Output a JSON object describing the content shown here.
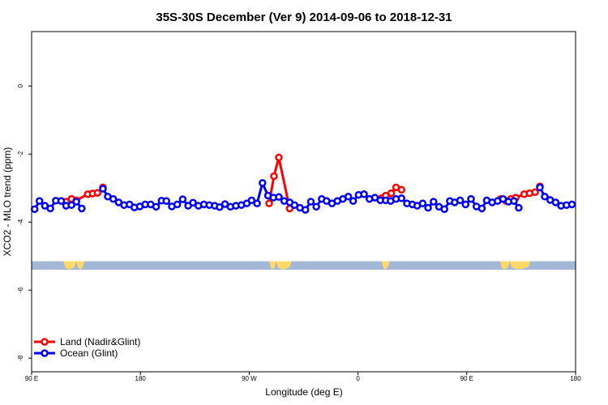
{
  "chart_data": {
    "type": "line",
    "title": "35S-30S December (Ver 9)   2014-09-06 to 2018-12-31",
    "xlabel": "Longitude (deg E)",
    "ylabel": "XCO2 - MLO trend (ppm)",
    "xlim": [
      90,
      450
    ],
    "ylim": [
      -8.4,
      1.6
    ],
    "x_ticks": [
      {
        "value": 90,
        "label": "90 E"
      },
      {
        "value": 162,
        "label": "180"
      },
      {
        "value": 234,
        "label": "90 W"
      },
      {
        "value": 306,
        "label": "0"
      },
      {
        "value": 378,
        "label": "90 E"
      },
      {
        "value": 450,
        "label": "180"
      }
    ],
    "y_ticks": [
      {
        "value": 0,
        "label": "0"
      },
      {
        "value": -2,
        "label": "-2"
      },
      {
        "value": -4,
        "label": "-4"
      },
      {
        "value": -6,
        "label": "-6"
      },
      {
        "value": -8,
        "label": "-8"
      }
    ],
    "grid": false,
    "legend_position": "bottom-left",
    "colors": {
      "land": "#ff0000",
      "ocean": "#0000ff",
      "land_mask": "#ffd966",
      "ocean_mask": "#a3b8d6"
    },
    "series": [
      {
        "name": "Land (Nadir&Glint)",
        "color": "#ff0000",
        "segments": [
          {
            "x": [
              112.8,
              116.4,
              119.6,
              127.2,
              130.4,
              133.6,
              137.2
            ],
            "y": [
              -3.4,
              -3.32,
              -3.36,
              -3.18,
              -3.16,
              -3.14,
              -2.98
            ]
          },
          {
            "x": [
              247.2,
              250.4,
              253.6,
              260.8
            ],
            "y": [
              -3.45,
              -2.65,
              -2.1,
              -3.6
            ]
          },
          {
            "x": [
              321.6,
              324.4,
              328.0,
              331.2,
              334.8
            ],
            "y": [
              -3.3,
              -3.22,
              -3.15,
              -2.98,
              -3.05
            ]
          },
          {
            "x": [
              400.4,
              404.0,
              407.2,
              410.4,
              416.0,
              419.6,
              423.2,
              426.4
            ],
            "y": [
              -3.32,
              -3.38,
              -3.32,
              -3.28,
              -3.18,
              -3.15,
              -3.12,
              -2.95
            ]
          }
        ]
      },
      {
        "name": "Ocean (Glint)",
        "color": "#0000ff",
        "segments": [
          {
            "x": [
              92.0,
              95.2,
              98.8,
              102.4,
              106.0,
              109.6,
              112.8,
              116.4,
              119.6,
              123.2
            ],
            "y": [
              -3.62,
              -3.38,
              -3.52,
              -3.6,
              -3.37,
              -3.38,
              -3.52,
              -3.5,
              -3.4,
              -3.6
            ]
          },
          {
            "x": [
              137.2,
              140.4,
              144.0,
              147.6,
              151.2,
              154.8,
              158.0,
              161.6,
              165.2,
              168.8,
              172.4,
              176.0,
              179.2,
              182.8,
              186.4,
              190.0,
              193.6,
              196.8,
              200.4,
              204.0,
              207.6,
              211.2,
              214.4,
              218.0,
              221.6,
              225.2,
              228.8,
              232.4,
              235.6,
              239.2,
              242.8,
              246.4,
              250.0,
              253.6,
              257.2,
              260.8,
              264.0,
              267.6,
              271.2,
              274.8,
              278.4,
              282.0,
              285.2,
              288.8,
              292.4,
              296.0,
              299.6,
              302.8,
              306.4,
              310.0,
              313.6,
              317.2,
              320.8,
              324.4,
              327.6,
              331.2,
              334.8,
              338.4,
              342.0,
              345.2,
              348.8,
              352.4,
              356.0,
              359.6,
              363.2,
              366.8,
              370.0,
              373.6,
              377.2,
              380.8,
              384.4,
              388.0,
              391.2,
              394.8,
              398.4,
              402.0,
              405.6,
              409.2,
              412.4
            ],
            "y": [
              -3.02,
              -3.25,
              -3.32,
              -3.42,
              -3.5,
              -3.48,
              -3.57,
              -3.54,
              -3.48,
              -3.48,
              -3.55,
              -3.37,
              -3.38,
              -3.54,
              -3.48,
              -3.33,
              -3.52,
              -3.43,
              -3.52,
              -3.48,
              -3.5,
              -3.52,
              -3.56,
              -3.47,
              -3.55,
              -3.52,
              -3.5,
              -3.45,
              -3.36,
              -3.45,
              -2.85,
              -3.22,
              -3.28,
              -3.26,
              -3.38,
              -3.42,
              -3.5,
              -3.58,
              -3.64,
              -3.4,
              -3.55,
              -3.32,
              -3.38,
              -3.45,
              -3.38,
              -3.32,
              -3.25,
              -3.38,
              -3.2,
              -3.18,
              -3.32,
              -3.28,
              -3.36,
              -3.36,
              -3.38,
              -3.32,
              -3.3,
              -3.45,
              -3.48,
              -3.52,
              -3.45,
              -3.58,
              -3.4,
              -3.55,
              -3.62,
              -3.38,
              -3.42,
              -3.36,
              -3.48,
              -3.32,
              -3.54,
              -3.6,
              -3.36,
              -3.42,
              -3.38,
              -3.32,
              -3.4,
              -3.38,
              -3.58
            ]
          },
          {
            "x": [
              426.4,
              429.6,
              433.2,
              436.8,
              440.4,
              444.0,
              447.6
            ],
            "y": [
              -2.98,
              -3.25,
              -3.35,
              -3.42,
              -3.52,
              -3.5,
              -3.48
            ]
          }
        ]
      }
    ],
    "land_mask": {
      "y_top": -5.15,
      "y_bottom": -5.4,
      "land_ranges": [
        [
          111.0,
          119.6
        ],
        [
          119.6,
          125.0
        ],
        [
          247.2,
          252.0
        ],
        [
          252.0,
          262.0
        ],
        [
          321.6,
          327.0
        ],
        [
          400.0,
          406.5
        ],
        [
          406.5,
          420.0
        ]
      ]
    },
    "legend": [
      {
        "label": "Land (Nadir&Glint)",
        "color": "#ff0000"
      },
      {
        "label": "Ocean (Glint)",
        "color": "#0000ff"
      }
    ]
  }
}
